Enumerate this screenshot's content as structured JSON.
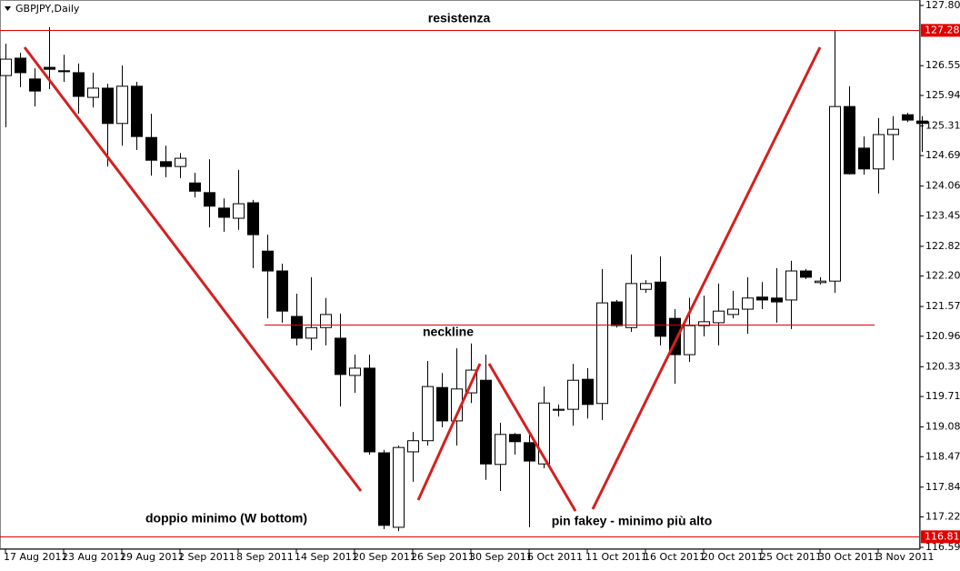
{
  "chart_data": {
    "type": "candlestick",
    "title": "GBPJPY,Daily",
    "categories": [
      "17 Aug 2011",
      null,
      null,
      null,
      "23 Aug 2011",
      null,
      null,
      null,
      "29 Aug 2011",
      null,
      null,
      null,
      "2 Sep 2011",
      null,
      null,
      null,
      "8 Sep 2011",
      null,
      null,
      null,
      "14 Sep 2011",
      null,
      null,
      null,
      "20 Sep 2011",
      null,
      null,
      null,
      "26 Sep 2011",
      null,
      null,
      null,
      "30 Sep 2011",
      null,
      null,
      null,
      "6 Oct 2011",
      null,
      null,
      null,
      "11 Oct 2011",
      null,
      null,
      null,
      "16 Oct 2011",
      null,
      null,
      null,
      "20 Oct 2011",
      null,
      null,
      null,
      "25 Oct 2011",
      null,
      null,
      null,
      "30 Oct 2011",
      null,
      null,
      null,
      "3 Nov 2011",
      null,
      null,
      null
    ],
    "open": [
      126.35,
      126.71,
      126.28,
      126.52,
      126.45,
      126.41,
      125.9,
      126.09,
      125.36,
      126.13,
      125.07,
      124.57,
      124.47,
      124.13,
      123.93,
      123.61,
      123.4,
      123.72,
      122.72,
      122.31,
      121.37,
      120.92,
      121.14,
      120.92,
      120.15,
      120.3,
      118.55,
      117.01,
      118.57,
      118.8,
      119.9,
      119.21,
      119.79,
      120.05,
      118.31,
      118.93,
      118.76,
      118.32,
      119.43,
      119.45,
      120.07,
      119.57,
      121.67,
      121.14,
      121.93,
      122.08,
      121.33,
      120.58,
      121.18,
      121.24,
      121.41,
      121.52,
      121.77,
      121.75,
      121.71,
      122.31,
      122.07,
      122.1,
      125.71,
      124.85,
      124.42,
      125.13,
      125.54,
      125.41
    ],
    "high": [
      127.01,
      126.82,
      126.5,
      127.35,
      126.78,
      126.6,
      126.41,
      126.18,
      126.56,
      126.22,
      125.56,
      124.9,
      124.75,
      124.34,
      124.62,
      123.81,
      124.4,
      123.78,
      123.06,
      122.46,
      121.84,
      122.18,
      121.75,
      121.43,
      120.58,
      120.58,
      118.61,
      118.7,
      118.98,
      120.45,
      120.2,
      120.71,
      120.81,
      120.58,
      119.17,
      118.96,
      118.95,
      119.92,
      119.55,
      120.39,
      120.3,
      122.35,
      121.71,
      122.65,
      122.12,
      122.61,
      121.52,
      121.75,
      121.8,
      122.05,
      121.9,
      122.18,
      122.08,
      122.37,
      122.52,
      122.35,
      122.18,
      127.29,
      126.13,
      125.09,
      125.47,
      125.51,
      125.58,
      125.51
    ],
    "low": [
      125.28,
      126.11,
      125.71,
      126.07,
      126.22,
      125.56,
      125.69,
      124.47,
      124.9,
      124.81,
      124.28,
      124.25,
      124.23,
      123.83,
      123.21,
      123.12,
      123.16,
      122.37,
      121.33,
      121.24,
      120.77,
      120.67,
      120.77,
      119.51,
      119.79,
      118.51,
      116.97,
      116.93,
      117.95,
      118.7,
      119.08,
      118.7,
      119.58,
      117.99,
      117.76,
      118.51,
      117.01,
      118.23,
      119.3,
      119.11,
      119.26,
      119.23,
      121.14,
      121.05,
      121.86,
      120.77,
      119.98,
      120.43,
      120.96,
      120.77,
      121.33,
      121.01,
      121.52,
      121.24,
      121.11,
      122.14,
      122.03,
      121.86,
      124.3,
      124.3,
      123.91,
      124.6,
      125.39,
      124.77
    ],
    "close": [
      126.69,
      126.41,
      126.03,
      126.48,
      126.43,
      125.92,
      126.09,
      125.36,
      126.13,
      125.09,
      124.6,
      124.47,
      124.64,
      123.96,
      123.65,
      123.42,
      123.7,
      123.06,
      122.31,
      121.48,
      120.92,
      121.14,
      121.41,
      120.17,
      120.3,
      118.57,
      117.05,
      118.66,
      118.8,
      119.92,
      119.21,
      119.87,
      120.26,
      118.32,
      118.93,
      118.78,
      118.38,
      119.58,
      119.45,
      120.05,
      119.55,
      121.65,
      121.18,
      122.05,
      122.05,
      120.96,
      120.58,
      121.18,
      121.26,
      121.48,
      121.52,
      121.75,
      121.71,
      121.67,
      122.31,
      122.18,
      122.1,
      125.71,
      124.32,
      124.42,
      125.13,
      125.24,
      125.43,
      125.36
    ],
    "up_color": "#ffffff",
    "down_color": "#000000",
    "ylim": [
      116.595,
      127.8
    ],
    "yticks": [
      {
        "value": 127.8,
        "label": "127.800"
      },
      126.555,
      {
        "value": 125.94,
        "label": "125.940"
      },
      {
        "value": 125.31,
        "label": "125.310"
      },
      124.695,
      124.065,
      {
        "value": 123.45,
        "label": "123.450"
      },
      {
        "value": 122.82,
        "label": "122.820"
      },
      122.205,
      121.575,
      {
        "value": 120.96,
        "label": "120.960"
      },
      {
        "value": 120.33,
        "label": "120.330"
      },
      119.715,
      119.085,
      {
        "value": 118.47,
        "label": "118.470"
      },
      {
        "value": 117.84,
        "label": "117.840"
      },
      117.225,
      116.595
    ],
    "grid": false,
    "hlines": [
      {
        "value": 127.285,
        "color": "#e00000"
      },
      {
        "value": 116.814,
        "color": "#e00000"
      },
      {
        "value": 121.2,
        "color": "#e00000"
      }
    ],
    "annotations": [
      "resistenza",
      "neckline",
      "doppio minimo (W bottom)",
      "pin fakey - minimo più alto"
    ]
  }
}
